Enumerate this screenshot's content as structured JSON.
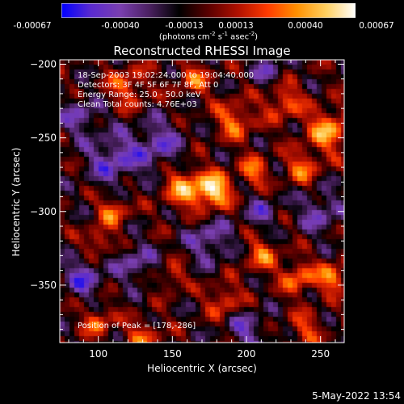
{
  "colorbar": {
    "ticks": [
      "-0.00067",
      "-0.00040",
      "-0.00013",
      "0.00013",
      "0.00040",
      "0.00067"
    ],
    "unit_main": "(photons cm",
    "unit_exp1": "-2",
    "unit_s": " s",
    "unit_exp2": "-1",
    "unit_asec": " asec",
    "unit_exp3": "-2",
    "unit_close": ")",
    "colors": [
      "#0000ff",
      "#5a2ad0",
      "#7a3fb0",
      "#4a2060",
      "#000000",
      "#5a0000",
      "#b01000",
      "#ff3a00",
      "#ff9000",
      "#ffd060",
      "#ffffff"
    ]
  },
  "title": "Reconstructed RHESSI Image",
  "annotations": {
    "time": "18-Sep-2003 19:02:24.000 to 19:04:40.000",
    "detectors": "Detectors: 3F 4F 5F 6F 7F 8F, Att 0",
    "energy": "Energy Range: 25.0 - 50.0 keV",
    "clean": "Clean     Total counts: 4.76E+03",
    "peak": "Position of Peak = [178,-286]"
  },
  "chart_data": {
    "type": "heatmap",
    "title": "Reconstructed RHESSI Image",
    "xlabel": "Heliocentric X (arcsec)",
    "ylabel": "Heliocentric Y (arcsec)",
    "xlim": [
      74,
      266
    ],
    "ylim": [
      -389,
      -197
    ],
    "x_ticks": [
      100,
      150,
      200,
      250
    ],
    "y_ticks": [
      -200,
      -250,
      -300,
      -350
    ],
    "x_tick_labels": [
      "100",
      "150",
      "200",
      "250"
    ],
    "y_tick_labels": [
      "-200",
      "-250",
      "-300",
      "-350"
    ],
    "value_range": [
      -0.00067,
      0.00067
    ],
    "colorbar_position": "top",
    "peak": [
      178,
      -286
    ],
    "sources": [
      {
        "x": 178,
        "y": -286,
        "amp": 1.0,
        "w": 8
      },
      {
        "x": 158,
        "y": -284,
        "amp": 0.7,
        "w": 10
      },
      {
        "x": 205,
        "y": -273,
        "amp": 0.6,
        "w": 7
      },
      {
        "x": 255,
        "y": -245,
        "amp": 0.75,
        "w": 10
      },
      {
        "x": 238,
        "y": -270,
        "amp": 0.55,
        "w": 8
      },
      {
        "x": 192,
        "y": -238,
        "amp": 0.6,
        "w": 9
      },
      {
        "x": 225,
        "y": -225,
        "amp": 0.55,
        "w": 9
      },
      {
        "x": 110,
        "y": -300,
        "amp": 0.6,
        "w": 7
      },
      {
        "x": 100,
        "y": -320,
        "amp": 0.55,
        "w": 6
      },
      {
        "x": 130,
        "y": -385,
        "amp": 0.5,
        "w": 8
      },
      {
        "x": 100,
        "y": -375,
        "amp": 0.55,
        "w": 7
      },
      {
        "x": 210,
        "y": -330,
        "amp": 0.55,
        "w": 8
      },
      {
        "x": 235,
        "y": -345,
        "amp": 0.6,
        "w": 8
      },
      {
        "x": 258,
        "y": -345,
        "amp": 0.7,
        "w": 7
      },
      {
        "x": 185,
        "y": -360,
        "amp": 0.5,
        "w": 8
      },
      {
        "x": 150,
        "y": -345,
        "amp": 0.45,
        "w": 6
      },
      {
        "x": 120,
        "y": -215,
        "amp": 0.5,
        "w": 10
      },
      {
        "x": 165,
        "y": -210,
        "amp": 0.5,
        "w": 8
      },
      {
        "x": 240,
        "y": -380,
        "amp": 0.45,
        "w": 8
      },
      {
        "x": 140,
        "y": -255,
        "amp": -0.5,
        "w": 12
      },
      {
        "x": 110,
        "y": -265,
        "amp": -0.55,
        "w": 12
      },
      {
        "x": 90,
        "y": -345,
        "amp": -0.55,
        "w": 9
      },
      {
        "x": 175,
        "y": -320,
        "amp": -0.5,
        "w": 10
      },
      {
        "x": 125,
        "y": -335,
        "amp": -0.45,
        "w": 9
      },
      {
        "x": 250,
        "y": -300,
        "amp": -0.45,
        "w": 10
      },
      {
        "x": 210,
        "y": -300,
        "amp": -0.4,
        "w": 8
      },
      {
        "x": 200,
        "y": -380,
        "amp": -0.45,
        "w": 9
      },
      {
        "x": 215,
        "y": -205,
        "amp": -0.4,
        "w": 8
      },
      {
        "x": 88,
        "y": -235,
        "amp": -0.45,
        "w": 9
      }
    ]
  },
  "footer_date": "5-May-2022 13:54"
}
